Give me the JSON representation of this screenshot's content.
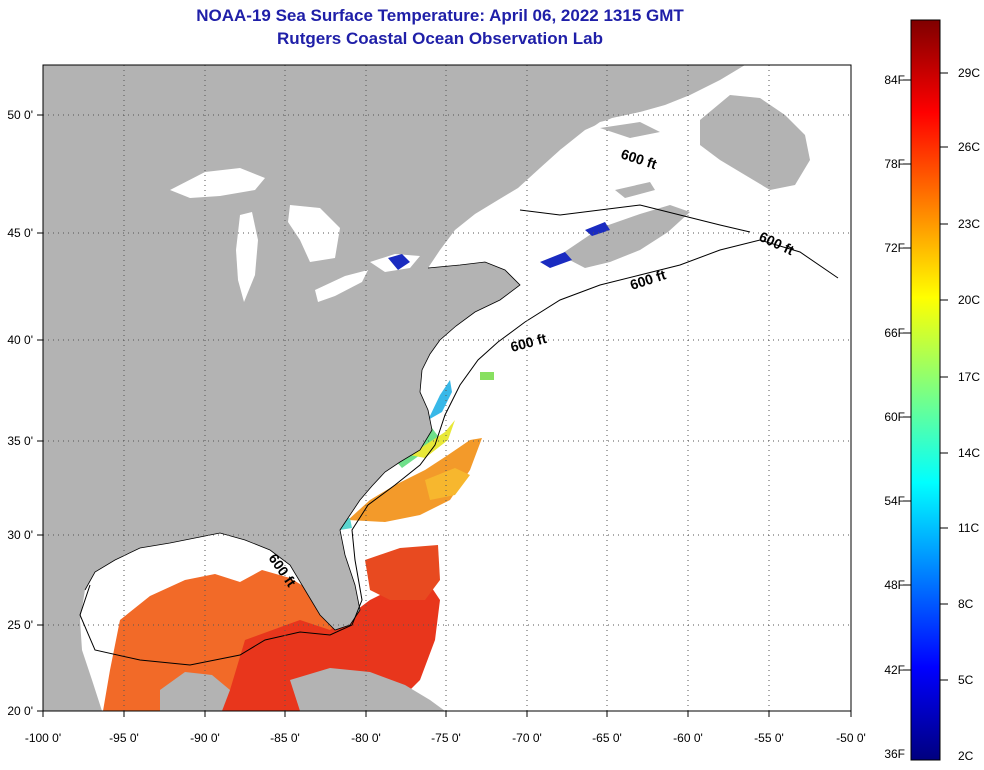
{
  "title": "NOAA-19 Sea Surface Temperature:  April 06, 2022 1315 GMT",
  "subtitle": "Rutgers Coastal Ocean Observation Lab",
  "x_ticks": [
    "-100 0'",
    "-95 0'",
    "-90 0'",
    "-85 0'",
    "-80 0'",
    "-75 0'",
    "-70 0'",
    "-65 0'",
    "-60 0'",
    "-55 0'",
    "-50 0'"
  ],
  "y_ticks": [
    "50 0'",
    "45 0'",
    "40 0'",
    "35 0'",
    "30 0'",
    "25 0'",
    "20 0'"
  ],
  "contour_labels": [
    "600 ft",
    "600 ft",
    "600 ft",
    "600 ft",
    "600 ft"
  ],
  "colorbar": {
    "fahrenheit_labels": [
      "84F",
      "78F",
      "72F",
      "66F",
      "60F",
      "54F",
      "48F",
      "42F",
      "36F"
    ],
    "celsius_labels": [
      "29C",
      "26C",
      "23C",
      "20C",
      "17C",
      "14C",
      "11C",
      "8C",
      "5C",
      "2C"
    ],
    "stops": [
      "#00007f",
      "#0000ff",
      "#007fff",
      "#00ffff",
      "#7fff7f",
      "#ffff00",
      "#ff7f00",
      "#ff0000",
      "#7f0000"
    ]
  },
  "colors": {
    "land": "#b3b3b3",
    "no_data": "#ffffff",
    "title": "#1f1fa8",
    "gulf_sst": "#f26a28",
    "caribbean_sst": "#e8361c"
  }
}
